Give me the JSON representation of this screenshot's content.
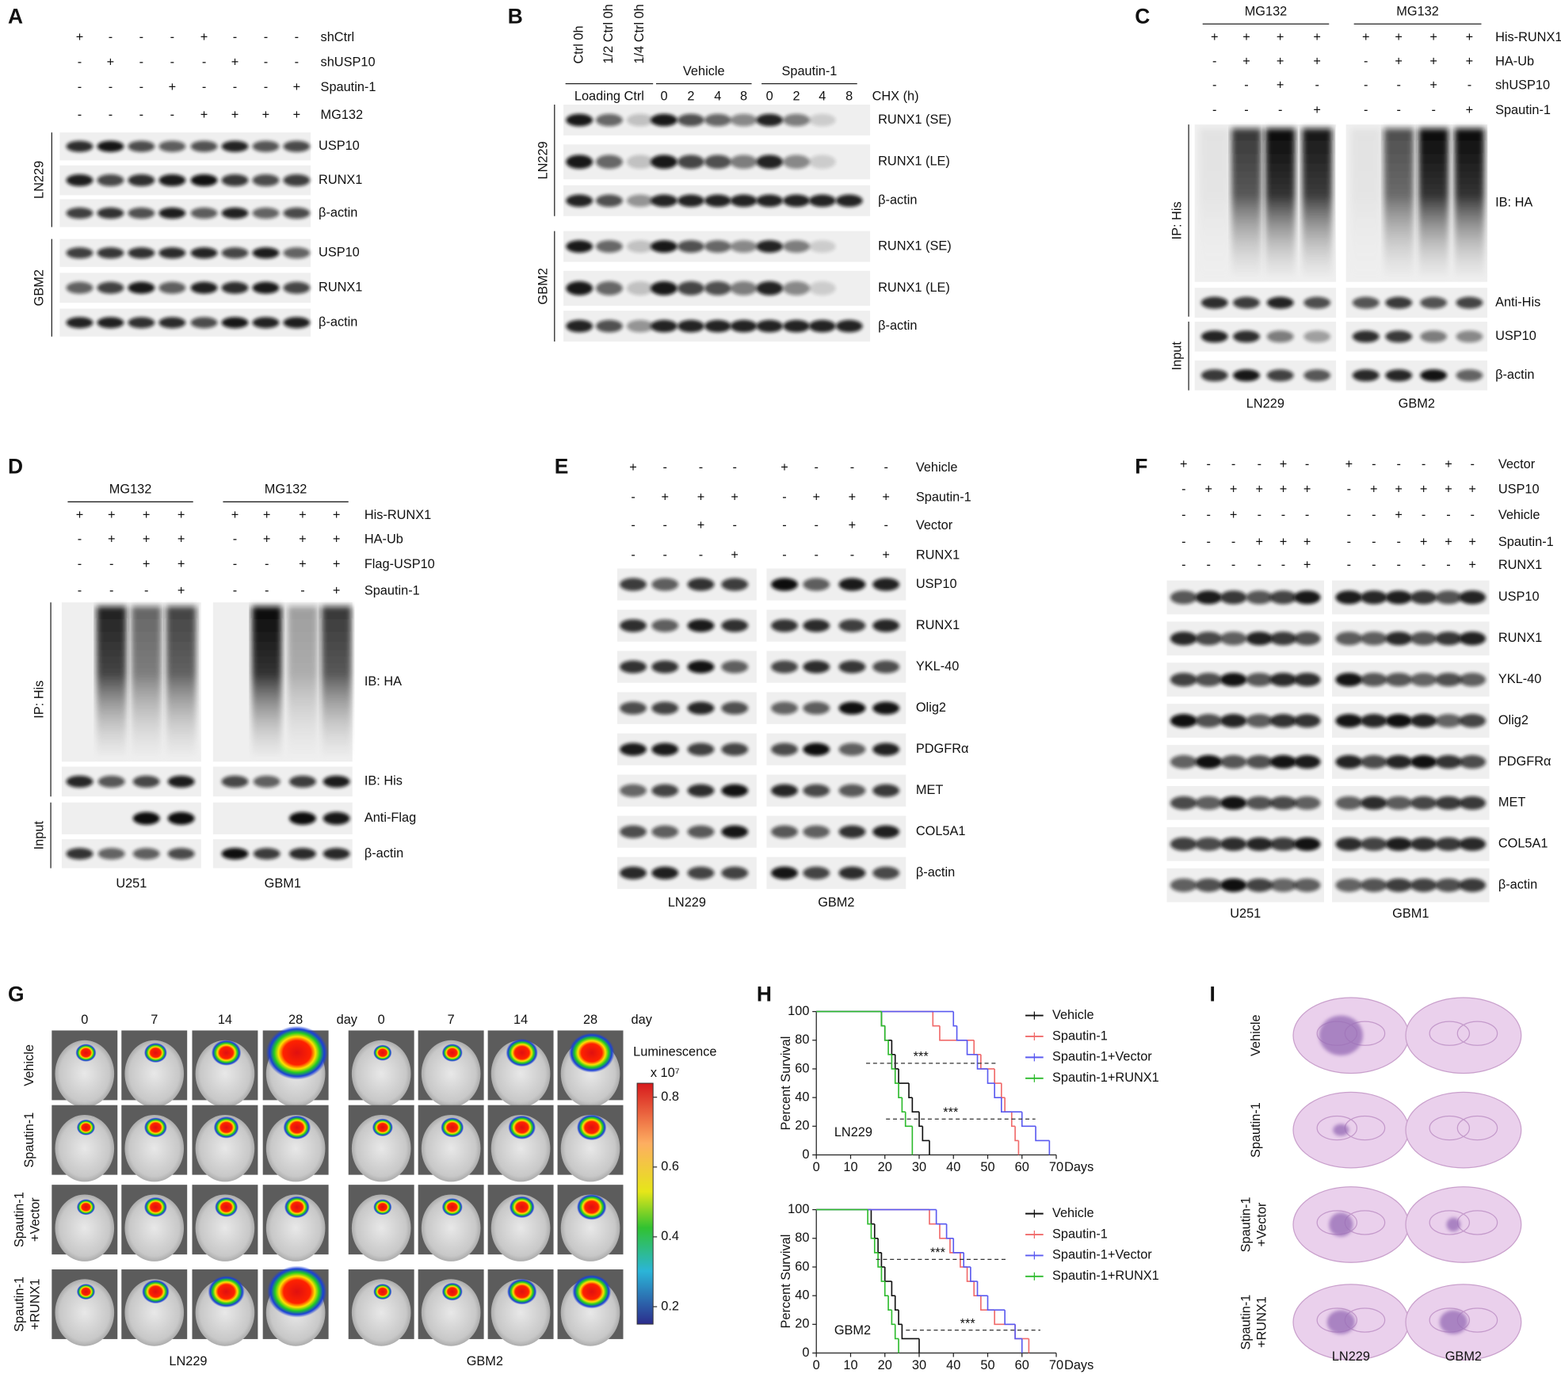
{
  "panels": {
    "A": {
      "letter": "A",
      "conditions": [
        {
          "name": "shCtrl",
          "signs": [
            "+",
            "-",
            "-",
            "-",
            "+",
            "-",
            "-",
            "-"
          ]
        },
        {
          "name": "shUSP10",
          "signs": [
            "-",
            "+",
            "-",
            "-",
            "-",
            "+",
            "-",
            "-"
          ]
        },
        {
          "name": "Spautin-1",
          "signs": [
            "-",
            "-",
            "-",
            "+",
            "-",
            "-",
            "-",
            "+"
          ]
        },
        {
          "name": "MG132",
          "signs": [
            "-",
            "-",
            "-",
            "-",
            "+",
            "+",
            "+",
            "+"
          ]
        }
      ],
      "cells": [
        {
          "name": "LN229",
          "bands": [
            "USP10",
            "RUNX1",
            "β-actin"
          ]
        },
        {
          "name": "GBM2",
          "bands": [
            "USP10",
            "RUNX1",
            "β-actin"
          ]
        }
      ]
    },
    "B": {
      "letter": "B",
      "lanes": [
        "Ctrl 0h",
        "1/2 Ctrl 0h",
        "1/4 Ctrl 0h"
      ],
      "loading": "Loading Ctrl",
      "groups": [
        "Vehicle",
        "Spautin-1"
      ],
      "times": [
        "0",
        "2",
        "4",
        "8",
        "0",
        "2",
        "4",
        "8"
      ],
      "time_label": "CHX (h)",
      "cells": [
        {
          "name": "LN229",
          "bands": [
            "RUNX1 (SE)",
            "RUNX1 (LE)",
            "β-actin"
          ]
        },
        {
          "name": "GBM2",
          "bands": [
            "RUNX1 (SE)",
            "RUNX1 (LE)",
            "β-actin"
          ]
        }
      ]
    },
    "C": {
      "letter": "C",
      "groups": [
        "MG132",
        "MG132"
      ],
      "conditions": [
        {
          "name": "His-RUNX1",
          "signs": [
            "+",
            "+",
            "+",
            "+",
            "+",
            "+",
            "+",
            "+"
          ]
        },
        {
          "name": "HA-Ub",
          "signs": [
            "-",
            "+",
            "+",
            "+",
            "-",
            "+",
            "+",
            "+"
          ]
        },
        {
          "name": "shUSP10",
          "signs": [
            "-",
            "-",
            "+",
            "-",
            "-",
            "-",
            "+",
            "-"
          ]
        },
        {
          "name": "Spautin-1",
          "signs": [
            "-",
            "-",
            "-",
            "+",
            "-",
            "-",
            "-",
            "+"
          ]
        }
      ],
      "sections": [
        "IP: His",
        "Input"
      ],
      "bands": [
        "IB: HA",
        "Anti-His",
        "USP10",
        "β-actin"
      ],
      "cells": [
        "LN229",
        "GBM2"
      ]
    },
    "D": {
      "letter": "D",
      "groups": [
        "MG132",
        "MG132"
      ],
      "conditions": [
        {
          "name": "His-RUNX1",
          "signs": [
            "+",
            "+",
            "+",
            "+",
            "+",
            "+",
            "+",
            "+"
          ]
        },
        {
          "name": "HA-Ub",
          "signs": [
            "-",
            "+",
            "+",
            "+",
            "-",
            "+",
            "+",
            "+"
          ]
        },
        {
          "name": "Flag-USP10",
          "signs": [
            "-",
            "-",
            "+",
            "+",
            "-",
            "-",
            "+",
            "+"
          ]
        },
        {
          "name": "Spautin-1",
          "signs": [
            "-",
            "-",
            "-",
            "+",
            "-",
            "-",
            "-",
            "+"
          ]
        }
      ],
      "sections": [
        "IP: His",
        "Input"
      ],
      "bands": [
        "IB: HA",
        "IB: His",
        "Anti-Flag",
        "β-actin"
      ],
      "cells": [
        "U251",
        "GBM1"
      ]
    },
    "E": {
      "letter": "E",
      "conditions": [
        {
          "name": "Vehicle",
          "signs": [
            "+",
            "-",
            "-",
            "-",
            "+",
            "-",
            "-",
            "-"
          ]
        },
        {
          "name": "Spautin-1",
          "signs": [
            "-",
            "+",
            "+",
            "+",
            "-",
            "+",
            "+",
            "+"
          ]
        },
        {
          "name": "Vector",
          "signs": [
            "-",
            "-",
            "+",
            "-",
            "-",
            "-",
            "+",
            "-"
          ]
        },
        {
          "name": "RUNX1",
          "signs": [
            "-",
            "-",
            "-",
            "+",
            "-",
            "-",
            "-",
            "+"
          ]
        }
      ],
      "bands": [
        "USP10",
        "RUNX1",
        "YKL-40",
        "Olig2",
        "PDGFRα",
        "MET",
        "COL5A1",
        "β-actin"
      ],
      "cells": [
        "LN229",
        "GBM2"
      ]
    },
    "F": {
      "letter": "F",
      "conditions": [
        {
          "name": "Vector",
          "signs": [
            "+",
            "-",
            "-",
            "-",
            "+",
            "-",
            "+",
            "-",
            "-",
            "-",
            "+",
            "-"
          ]
        },
        {
          "name": "USP10",
          "signs": [
            "-",
            "+",
            "+",
            "+",
            "+",
            "+",
            "-",
            "+",
            "+",
            "+",
            "+",
            "+"
          ]
        },
        {
          "name": "Vehicle",
          "signs": [
            "-",
            "-",
            "+",
            "-",
            "-",
            "-",
            "-",
            "-",
            "+",
            "-",
            "-",
            "-"
          ]
        },
        {
          "name": "Spautin-1",
          "signs": [
            "-",
            "-",
            "-",
            "+",
            "+",
            "+",
            "-",
            "-",
            "-",
            "+",
            "+",
            "+"
          ]
        },
        {
          "name": "RUNX1",
          "signs": [
            "-",
            "-",
            "-",
            "-",
            "-",
            "+",
            "-",
            "-",
            "-",
            "-",
            "-",
            "+"
          ]
        }
      ],
      "bands": [
        "USP10",
        "RUNX1",
        "YKL-40",
        "Olig2",
        "PDGFRα",
        "MET",
        "COL5A1",
        "β-actin"
      ],
      "cells": [
        "U251",
        "GBM1"
      ]
    },
    "G": {
      "letter": "G",
      "days": [
        "0",
        "7",
        "14",
        "28"
      ],
      "day_unit": "day",
      "rows": [
        [
          "Vehicle"
        ],
        [
          "Spautin-1"
        ],
        [
          "Spautin-1",
          "+Vector"
        ],
        [
          "Spautin-1",
          "+RUNX1"
        ]
      ],
      "cells": [
        "LN229",
        "GBM2"
      ],
      "colorbar": {
        "label": "Luminescence",
        "unit": "x 10⁷",
        "lim": [
          0.15,
          0.84
        ],
        "ticks": [
          0.8,
          0.6,
          0.4,
          0.2
        ]
      }
    },
    "H": {
      "letter": "H"
    },
    "I": {
      "letter": "I",
      "rows": [
        [
          "Vehicle"
        ],
        [
          "Spautin-1"
        ],
        [
          "Spautin-1",
          "+Vector"
        ],
        [
          "Spautin-1",
          "+RUNX1"
        ]
      ],
      "cells": [
        "LN229",
        "GBM2"
      ]
    }
  },
  "chart_data": [
    {
      "type": "line",
      "cell_label": "LN229",
      "xlabel": "Days",
      "ylabel": "Percent Survival",
      "xlim": [
        0,
        70
      ],
      "ylim": [
        0,
        100
      ],
      "xticks": [
        0,
        10,
        20,
        30,
        40,
        50,
        60,
        70
      ],
      "yticks": [
        0,
        20,
        40,
        60,
        80,
        100
      ],
      "annotations": [
        "***",
        "***"
      ],
      "series": [
        {
          "name": "Vehicle",
          "color": "#111111",
          "x": [
            0,
            19,
            20,
            22,
            23,
            24,
            27,
            28,
            30,
            31,
            33
          ],
          "values": [
            100,
            90,
            80,
            70,
            60,
            50,
            40,
            30,
            20,
            10,
            0
          ]
        },
        {
          "name": "Spautin-1",
          "color": "#f06a6a",
          "x": [
            0,
            34,
            36,
            46,
            48,
            52,
            54,
            55,
            57,
            58,
            59
          ],
          "values": [
            100,
            90,
            80,
            70,
            60,
            50,
            40,
            30,
            20,
            10,
            0
          ]
        },
        {
          "name": "Spautin-1+Vector",
          "color": "#5a5af0",
          "x": [
            0,
            40,
            41,
            44,
            47,
            50,
            52,
            54,
            60,
            64,
            68
          ],
          "values": [
            100,
            90,
            80,
            70,
            60,
            50,
            40,
            30,
            20,
            10,
            0
          ]
        },
        {
          "name": "Spautin-1+RUNX1",
          "color": "#2dbb2d",
          "x": [
            0,
            19,
            20,
            21,
            22,
            23,
            24,
            25,
            26,
            28
          ],
          "values": [
            100,
            90,
            80,
            70,
            60,
            50,
            40,
            30,
            20,
            0
          ]
        }
      ]
    },
    {
      "type": "line",
      "cell_label": "GBM2",
      "xlabel": "Days",
      "ylabel": "Percent Survival",
      "xlim": [
        0,
        70
      ],
      "ylim": [
        0,
        100
      ],
      "xticks": [
        0,
        10,
        20,
        30,
        40,
        50,
        60,
        70
      ],
      "yticks": [
        0,
        20,
        40,
        60,
        80,
        100
      ],
      "annotations": [
        "***",
        "***"
      ],
      "series": [
        {
          "name": "Vehicle",
          "color": "#111111",
          "x": [
            0,
            16,
            17,
            18,
            19,
            20,
            22,
            23,
            24,
            25,
            30
          ],
          "values": [
            100,
            90,
            80,
            70,
            60,
            50,
            40,
            30,
            20,
            10,
            0
          ]
        },
        {
          "name": "Spautin-1",
          "color": "#f06a6a",
          "x": [
            0,
            33,
            36,
            39,
            42,
            44,
            46,
            48,
            52,
            58,
            62
          ],
          "values": [
            100,
            90,
            80,
            70,
            60,
            50,
            40,
            30,
            20,
            10,
            0
          ]
        },
        {
          "name": "Spautin-1+Vector",
          "color": "#5a5af0",
          "x": [
            0,
            35,
            38,
            40,
            43,
            45,
            47,
            50,
            55,
            58,
            60
          ],
          "values": [
            100,
            90,
            80,
            70,
            60,
            50,
            40,
            30,
            20,
            10,
            0
          ]
        },
        {
          "name": "Spautin-1+RUNX1",
          "color": "#2dbb2d",
          "x": [
            0,
            15,
            16,
            17,
            18,
            19,
            20,
            21,
            22,
            23,
            24
          ],
          "values": [
            100,
            90,
            80,
            70,
            60,
            50,
            40,
            30,
            20,
            10,
            0
          ]
        }
      ]
    }
  ]
}
